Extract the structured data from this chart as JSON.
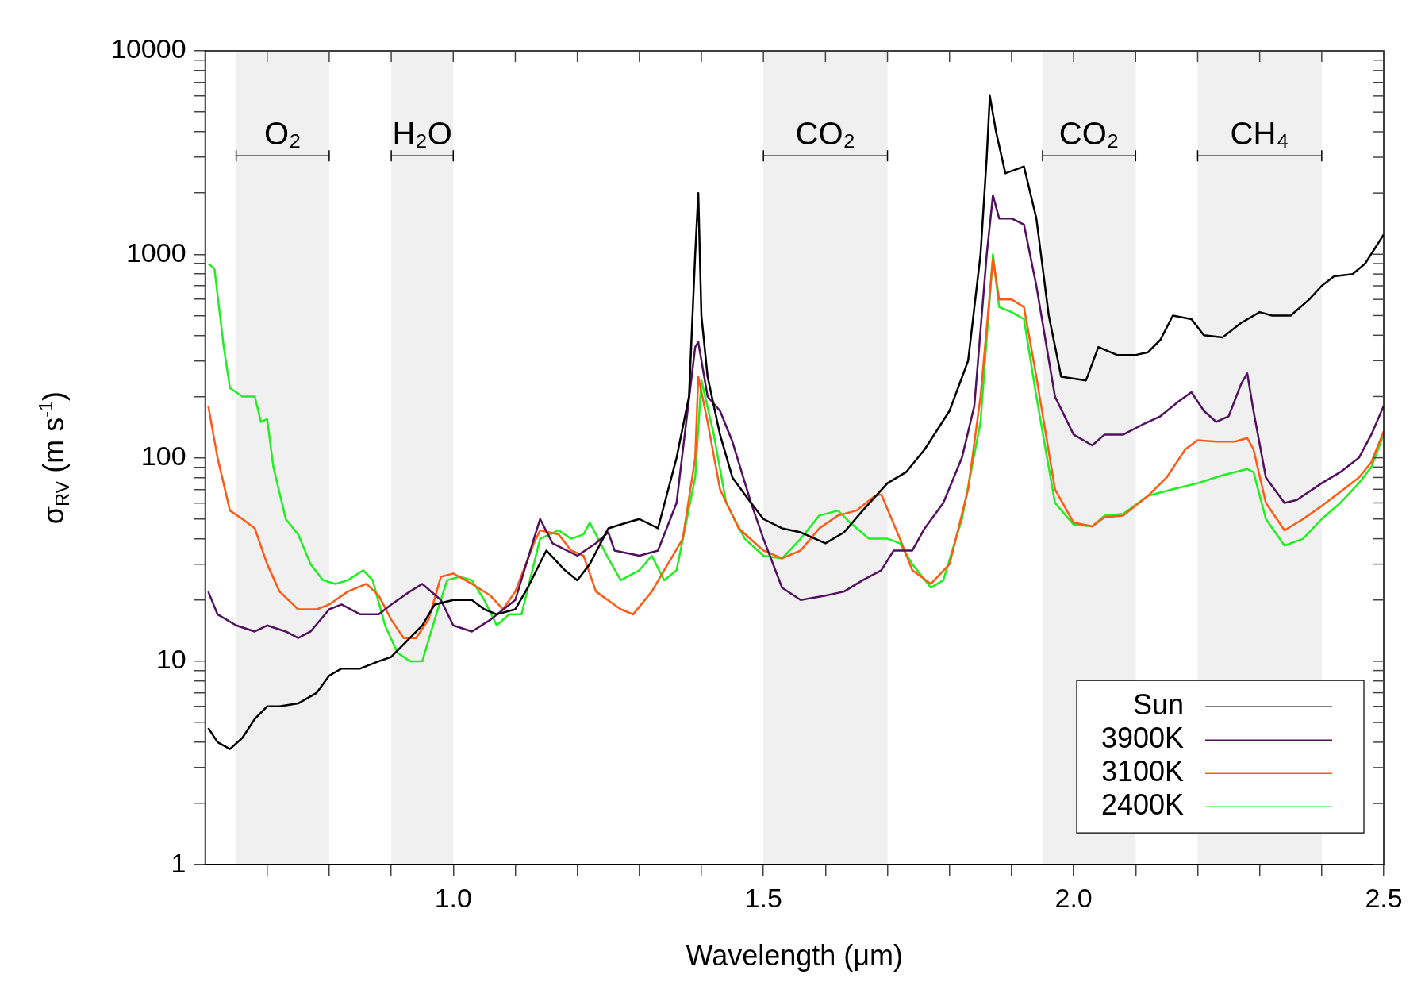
{
  "chart_data": {
    "type": "line",
    "xlabel": "Wavelength (μm)",
    "ylabel": "σ$_{RV}$ (m s$^{-1}$)",
    "log": "y",
    "grid": false,
    "legend": "bottom right",
    "marker": "none",
    "line_style": "solid",
    "xlim": [
      0.6,
      2.5
    ],
    "xticks": [
      {
        "value": 0.7,
        "label": null
      },
      {
        "value": 0.8,
        "label": null
      },
      {
        "value": 0.9,
        "label": null
      },
      {
        "value": 1,
        "label": "1.0"
      },
      {
        "value": 1.1,
        "label": null
      },
      {
        "value": 1.2,
        "label": null
      },
      {
        "value": 1.3,
        "label": null
      },
      {
        "value": 1.4,
        "label": null
      },
      {
        "value": 1.5,
        "label": "1.5"
      },
      {
        "value": 1.6,
        "label": null
      },
      {
        "value": 1.7,
        "label": null
      },
      {
        "value": 1.8,
        "label": null
      },
      {
        "value": 1.9,
        "label": null
      },
      {
        "value": 2,
        "label": "2.0"
      },
      {
        "value": 2.1,
        "label": null
      },
      {
        "value": 2.2,
        "label": null
      },
      {
        "value": 2.3,
        "label": null
      },
      {
        "value": 2.4,
        "label": null
      },
      {
        "value": 2.5,
        "label": "2.5"
      }
    ],
    "ylim": [
      1,
      10000
    ],
    "yticks": [
      1,
      {
        "value": 2,
        "label": null
      },
      {
        "value": 3,
        "label": null
      },
      {
        "value": 4,
        "label": null
      },
      {
        "value": 5,
        "label": null
      },
      {
        "value": 6,
        "label": null
      },
      {
        "value": 7,
        "label": null
      },
      {
        "value": 8,
        "label": null
      },
      {
        "value": 9,
        "label": null
      },
      10,
      {
        "value": 20,
        "label": null
      },
      {
        "value": 30,
        "label": null
      },
      {
        "value": 40,
        "label": null
      },
      {
        "value": 50,
        "label": null
      },
      {
        "value": 60,
        "label": null
      },
      {
        "value": 70,
        "label": null
      },
      {
        "value": 80,
        "label": null
      },
      {
        "value": 90,
        "label": null
      },
      100,
      {
        "value": 200,
        "label": null
      },
      {
        "value": 300,
        "label": null
      },
      {
        "value": 400,
        "label": null
      },
      {
        "value": 500,
        "label": null
      },
      {
        "value": 600,
        "label": null
      },
      {
        "value": 700,
        "label": null
      },
      {
        "value": 800,
        "label": null
      },
      {
        "value": 900,
        "label": null
      },
      1000,
      {
        "value": 2000,
        "label": null
      },
      {
        "value": 3000,
        "label": null
      },
      {
        "value": 4000,
        "label": null
      },
      {
        "value": 5000,
        "label": null
      },
      {
        "value": 6000,
        "label": null
      },
      {
        "value": 7000,
        "label": null
      },
      {
        "value": 8000,
        "label": null
      },
      {
        "value": 9000,
        "label": null
      },
      10000
    ],
    "bands": [
      {
        "axis": "x",
        "from": 0.65,
        "to": 0.8,
        "label": "O₂",
        "color": "#000000"
      },
      {
        "axis": "x",
        "from": 0.9,
        "to": 1.0,
        "label": "H₂O",
        "color": "#000000"
      },
      {
        "axis": "x",
        "from": 1.5,
        "to": 1.7,
        "label": "CO₂",
        "color": "#000000"
      },
      {
        "axis": "x",
        "from": 1.95,
        "to": 2.1,
        "label": "CO₂",
        "color": "#000000"
      },
      {
        "axis": "x",
        "from": 2.2,
        "to": 2.4,
        "label": "CH₄",
        "color": "#000000"
      }
    ],
    "series": [
      {
        "name": "Sun",
        "color": "#000000",
        "x": [
          0.605,
          0.62,
          0.64,
          0.66,
          0.68,
          0.7,
          0.72,
          0.75,
          0.78,
          0.8,
          0.82,
          0.85,
          0.88,
          0.9,
          0.93,
          0.95,
          0.97,
          1.0,
          1.03,
          1.05,
          1.07,
          1.1,
          1.12,
          1.15,
          1.18,
          1.2,
          1.22,
          1.25,
          1.28,
          1.3,
          1.33,
          1.36,
          1.38,
          1.39,
          1.395,
          1.4,
          1.41,
          1.43,
          1.45,
          1.48,
          1.5,
          1.53,
          1.56,
          1.6,
          1.63,
          1.66,
          1.7,
          1.73,
          1.76,
          1.8,
          1.83,
          1.85,
          1.86,
          1.865,
          1.875,
          1.89,
          1.92,
          1.94,
          1.96,
          1.98,
          2.02,
          2.04,
          2.07,
          2.1,
          2.12,
          2.14,
          2.16,
          2.19,
          2.21,
          2.24,
          2.27,
          2.3,
          2.32,
          2.35,
          2.38,
          2.4,
          2.42,
          2.45,
          2.47,
          2.5
        ],
        "values": [
          4.7,
          4,
          3.7,
          4.2,
          5.2,
          6,
          6,
          6.2,
          7,
          8.5,
          9.2,
          9.2,
          10,
          10.5,
          13,
          15,
          19,
          20,
          20,
          18,
          17,
          18,
          23,
          35,
          28,
          25,
          30,
          45,
          48,
          50,
          45,
          100,
          200,
          1000,
          2000,
          500,
          250,
          130,
          80,
          60,
          50,
          45,
          43,
          38,
          43,
          55,
          75,
          85,
          110,
          170,
          300,
          1000,
          3000,
          6000,
          4000,
          2500,
          2700,
          1500,
          500,
          250,
          240,
          350,
          320,
          320,
          330,
          380,
          500,
          480,
          400,
          390,
          460,
          520,
          500,
          500,
          600,
          700,
          780,
          800,
          900,
          1250
        ]
      },
      {
        "name": "3900K",
        "color": "#52105e",
        "x": [
          0.605,
          0.62,
          0.65,
          0.68,
          0.7,
          0.73,
          0.75,
          0.77,
          0.8,
          0.82,
          0.85,
          0.88,
          0.9,
          0.93,
          0.95,
          0.98,
          1.0,
          1.03,
          1.06,
          1.1,
          1.13,
          1.14,
          1.16,
          1.2,
          1.23,
          1.25,
          1.26,
          1.3,
          1.33,
          1.36,
          1.39,
          1.395,
          1.41,
          1.43,
          1.45,
          1.48,
          1.5,
          1.53,
          1.56,
          1.6,
          1.63,
          1.66,
          1.69,
          1.71,
          1.74,
          1.76,
          1.79,
          1.82,
          1.84,
          1.86,
          1.87,
          1.88,
          1.9,
          1.92,
          1.94,
          1.97,
          2.0,
          2.03,
          2.05,
          2.08,
          2.11,
          2.14,
          2.17,
          2.19,
          2.21,
          2.23,
          2.25,
          2.27,
          2.28,
          2.29,
          2.31,
          2.34,
          2.36,
          2.4,
          2.43,
          2.46,
          2.48,
          2.5
        ],
        "values": [
          22,
          17,
          15,
          14,
          15,
          14,
          13,
          14,
          18,
          19,
          17,
          17,
          19,
          22,
          24,
          20,
          15,
          14,
          16,
          20,
          40,
          50,
          38,
          33,
          38,
          43,
          35,
          33,
          35,
          60,
          350,
          370,
          200,
          170,
          120,
          60,
          40,
          23,
          20,
          21,
          22,
          25,
          28,
          35,
          35,
          45,
          60,
          100,
          180,
          1000,
          1950,
          1500,
          1500,
          1400,
          700,
          200,
          130,
          115,
          130,
          130,
          145,
          160,
          190,
          210,
          170,
          150,
          160,
          230,
          260,
          170,
          80,
          60,
          62,
          75,
          85,
          100,
          130,
          180
        ]
      },
      {
        "name": "3100K",
        "color": "#ff5a14",
        "x": [
          0.605,
          0.62,
          0.64,
          0.66,
          0.68,
          0.7,
          0.72,
          0.75,
          0.78,
          0.8,
          0.83,
          0.86,
          0.88,
          0.9,
          0.92,
          0.94,
          0.96,
          0.98,
          1.0,
          1.03,
          1.06,
          1.08,
          1.1,
          1.13,
          1.14,
          1.17,
          1.19,
          1.21,
          1.23,
          1.27,
          1.29,
          1.32,
          1.34,
          1.37,
          1.39,
          1.395,
          1.41,
          1.43,
          1.46,
          1.5,
          1.53,
          1.56,
          1.59,
          1.62,
          1.65,
          1.68,
          1.69,
          1.72,
          1.74,
          1.77,
          1.8,
          1.83,
          1.85,
          1.87,
          1.88,
          1.9,
          1.92,
          1.94,
          1.97,
          2.0,
          2.03,
          2.05,
          2.08,
          2.12,
          2.15,
          2.18,
          2.2,
          2.23,
          2.26,
          2.28,
          2.29,
          2.31,
          2.34,
          2.37,
          2.4,
          2.43,
          2.46,
          2.48,
          2.5
        ],
        "values": [
          180,
          100,
          55,
          50,
          45,
          30,
          22,
          18,
          18,
          19,
          22,
          24,
          21,
          16,
          13,
          13,
          16,
          26,
          27,
          24,
          21,
          18,
          22,
          38,
          44,
          42,
          35,
          33,
          22,
          18,
          17,
          22,
          28,
          40,
          100,
          250,
          150,
          70,
          45,
          35,
          32,
          35,
          45,
          52,
          55,
          65,
          66,
          40,
          28,
          24,
          30,
          70,
          200,
          950,
          600,
          600,
          550,
          250,
          70,
          48,
          46,
          51,
          52,
          65,
          80,
          110,
          122,
          120,
          120,
          125,
          110,
          60,
          44,
          50,
          58,
          68,
          80,
          95,
          135
        ]
      },
      {
        "name": "2400K",
        "color": "#1ef01e",
        "x": [
          0.605,
          0.615,
          0.63,
          0.64,
          0.66,
          0.68,
          0.69,
          0.7,
          0.71,
          0.73,
          0.75,
          0.77,
          0.79,
          0.81,
          0.83,
          0.855,
          0.87,
          0.89,
          0.91,
          0.93,
          0.95,
          0.97,
          0.99,
          1.01,
          1.03,
          1.05,
          1.07,
          1.09,
          1.11,
          1.14,
          1.17,
          1.19,
          1.21,
          1.22,
          1.25,
          1.27,
          1.3,
          1.32,
          1.34,
          1.36,
          1.39,
          1.4,
          1.42,
          1.44,
          1.47,
          1.5,
          1.53,
          1.56,
          1.59,
          1.62,
          1.64,
          1.67,
          1.7,
          1.72,
          1.74,
          1.77,
          1.79,
          1.82,
          1.85,
          1.87,
          1.88,
          1.9,
          1.92,
          1.94,
          1.97,
          2.0,
          2.03,
          2.05,
          2.08,
          2.12,
          2.16,
          2.2,
          2.24,
          2.28,
          2.29,
          2.31,
          2.34,
          2.37,
          2.4,
          2.43,
          2.46,
          2.48,
          2.5
        ],
        "values": [
          900,
          850,
          350,
          220,
          200,
          200,
          150,
          155,
          90,
          50,
          42,
          30,
          25,
          24,
          25,
          28,
          25,
          15,
          11,
          10,
          10,
          16,
          25,
          26,
          25,
          20,
          15,
          17,
          17,
          40,
          44,
          40,
          42,
          48,
          32,
          25,
          28,
          33,
          25,
          28,
          80,
          240,
          130,
          60,
          40,
          33,
          32,
          40,
          52,
          55,
          48,
          40,
          40,
          38,
          30,
          23,
          25,
          50,
          150,
          1000,
          550,
          520,
          480,
          200,
          60,
          47,
          46,
          52,
          53,
          65,
          70,
          75,
          82,
          88,
          85,
          50,
          37,
          40,
          50,
          60,
          75,
          90,
          130
        ]
      }
    ]
  }
}
